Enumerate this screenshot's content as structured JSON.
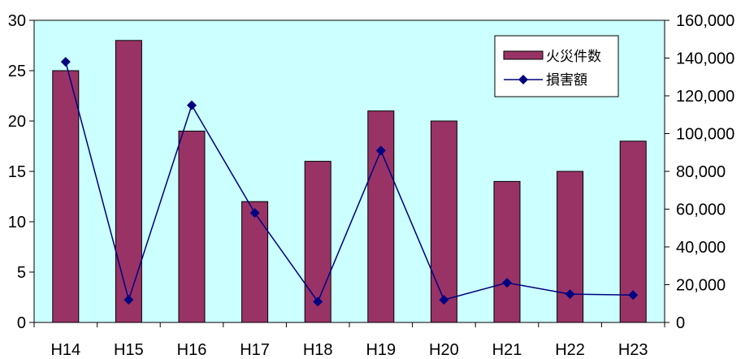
{
  "chart_data": {
    "type": "bar",
    "categories": [
      "H14",
      "H15",
      "H16",
      "H17",
      "H18",
      "H19",
      "H20",
      "H21",
      "H22",
      "H23"
    ],
    "series": [
      {
        "name": "火災件数",
        "type": "bar",
        "axis": "left",
        "color": "#993366",
        "values": [
          25,
          28,
          19,
          12,
          16,
          21,
          20,
          14,
          15,
          18
        ]
      },
      {
        "name": "損害額",
        "type": "line",
        "axis": "right",
        "color": "#000080",
        "marker": "diamond",
        "values": [
          138000,
          12000,
          115000,
          58000,
          11000,
          91000,
          12000,
          21000,
          15000,
          14500
        ]
      }
    ],
    "y_left": {
      "min": 0,
      "max": 30,
      "step": 5,
      "tick_labels": [
        "0",
        "5",
        "10",
        "15",
        "20",
        "25",
        "30"
      ]
    },
    "y_right": {
      "min": 0,
      "max": 160000,
      "step": 20000,
      "tick_labels": [
        "0",
        "20,000",
        "40,000",
        "60,000",
        "80,000",
        "100,000",
        "120,000",
        "140,000",
        "160,000"
      ]
    },
    "grid": false,
    "legend_position": "top-right",
    "plot_background": "#ccffff"
  }
}
